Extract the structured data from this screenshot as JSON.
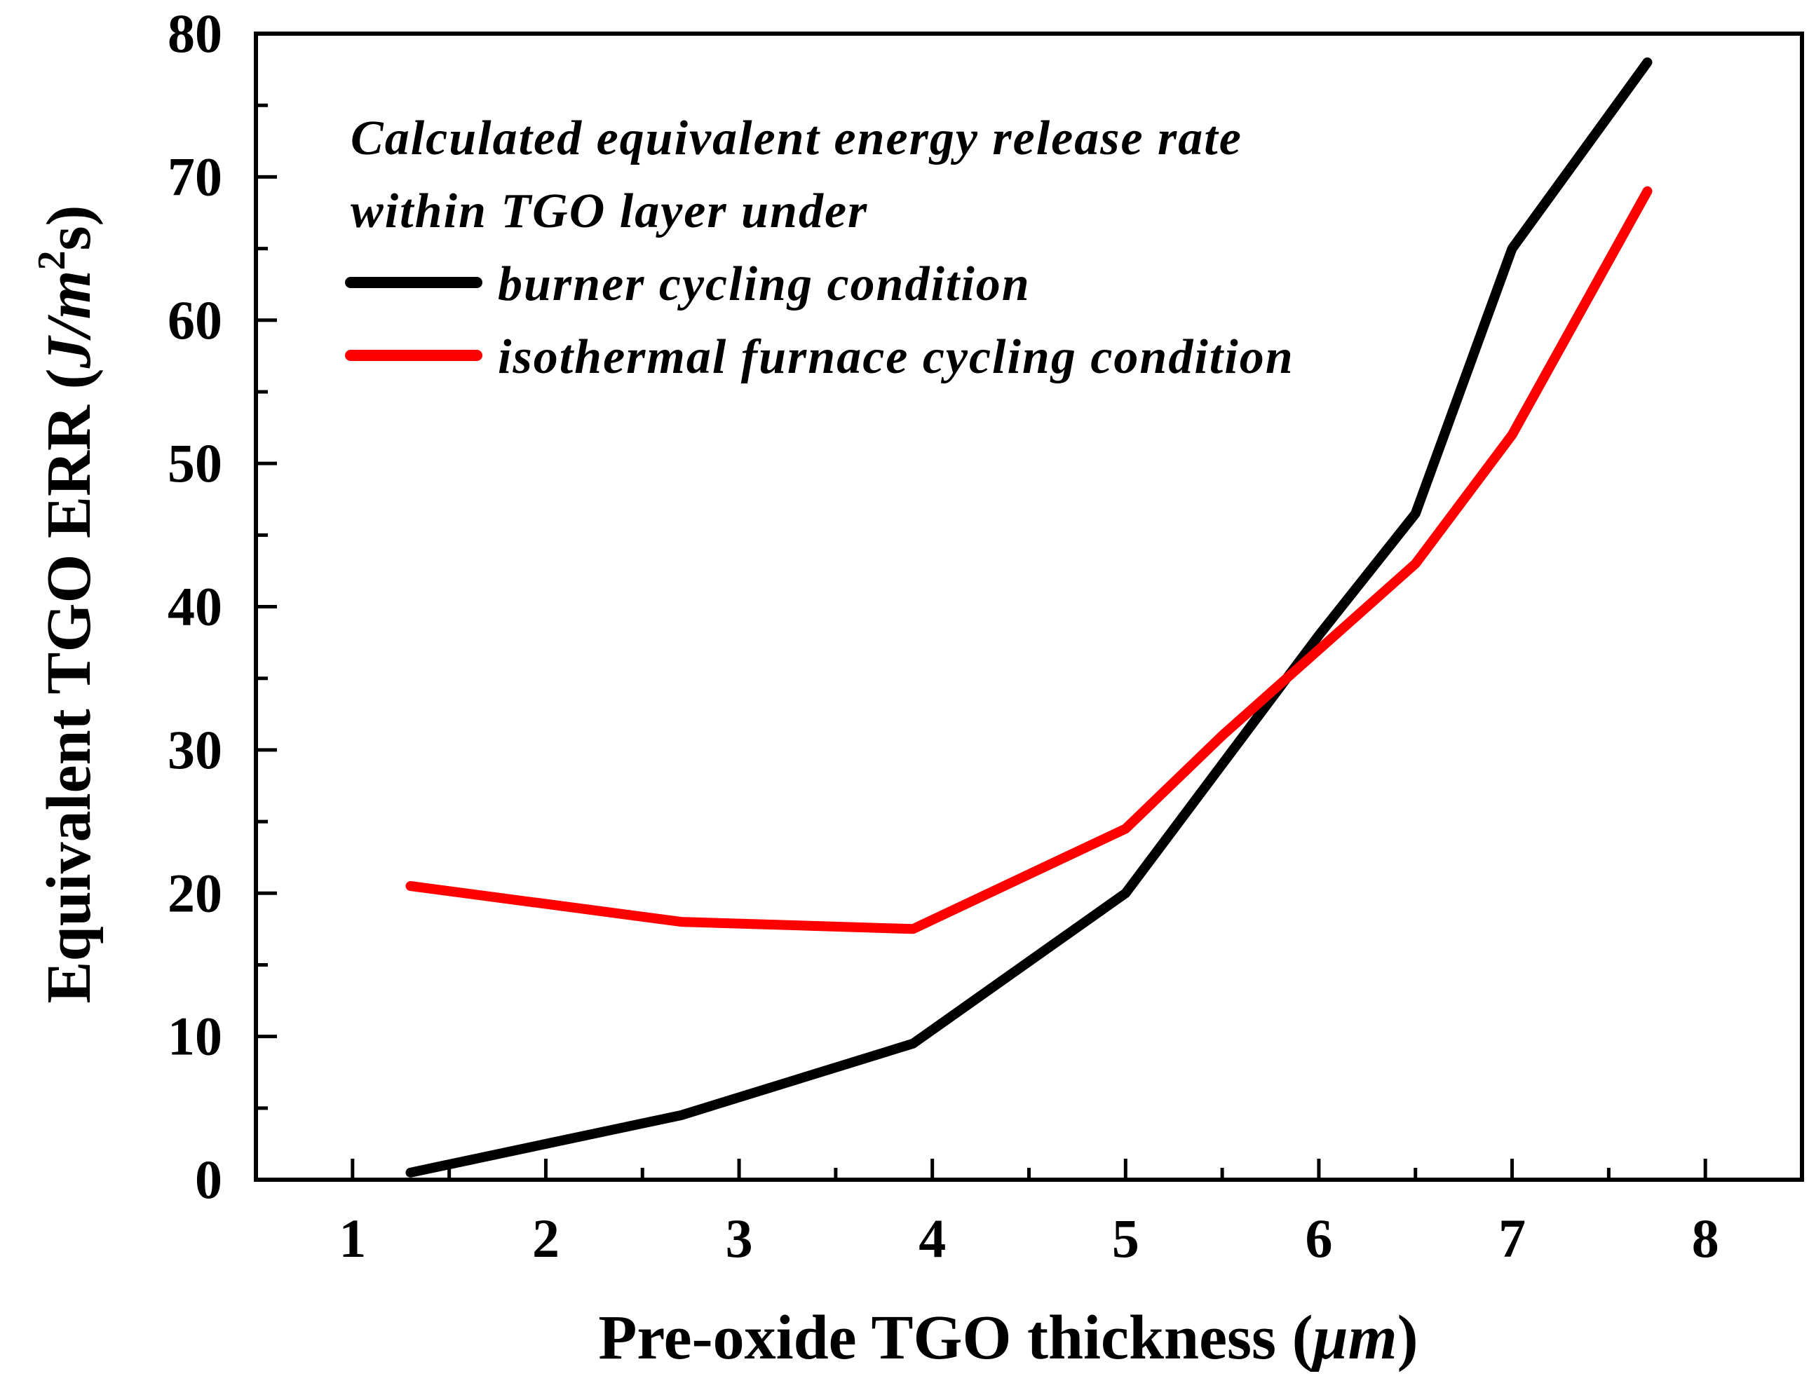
{
  "chart_data": {
    "type": "line",
    "xlabel_main": "Pre-oxide TGO thickness (",
    "xlabel_unit": "μm",
    "xlabel_close": ")",
    "ylabel_main": "Equivalent TGO ERR (",
    "ylabel_unit_j": "J/m",
    "ylabel_unit_exp": "2",
    "ylabel_unit_s": "s)",
    "xlim": [
      0.5,
      8.5
    ],
    "ylim": [
      0,
      80
    ],
    "x_ticks": [
      1,
      2,
      3,
      4,
      5,
      6,
      7,
      8
    ],
    "x_tick_labels": [
      "1",
      "2",
      "3",
      "4",
      "5",
      "6",
      "7",
      "8"
    ],
    "y_ticks": [
      0,
      10,
      20,
      30,
      40,
      50,
      60,
      70,
      80
    ],
    "y_tick_labels": [
      "0",
      "10",
      "20",
      "30",
      "40",
      "50",
      "60",
      "70",
      "80"
    ],
    "legend": {
      "title_line1": "Calculated equivalent energy release rate",
      "title_line2": "within TGO layer under",
      "position": "top-left"
    },
    "series": [
      {
        "name": "burner cycling condition",
        "color": "#000000",
        "x": [
          1.3,
          2.0,
          2.7,
          3.9,
          5.0,
          5.5,
          6.0,
          6.5,
          7.0,
          7.7
        ],
        "y": [
          0.5,
          2.5,
          4.5,
          9.5,
          20.0,
          29.0,
          38.0,
          46.5,
          65.0,
          78.0
        ]
      },
      {
        "name": "isothermal furnace cycling condition",
        "color": "#ff0000",
        "x": [
          1.3,
          2.7,
          3.9,
          5.0,
          5.5,
          6.0,
          6.5,
          7.0,
          7.7
        ],
        "y": [
          20.5,
          18.0,
          17.5,
          24.5,
          31.0,
          37.0,
          43.0,
          52.0,
          69.0
        ]
      }
    ]
  }
}
